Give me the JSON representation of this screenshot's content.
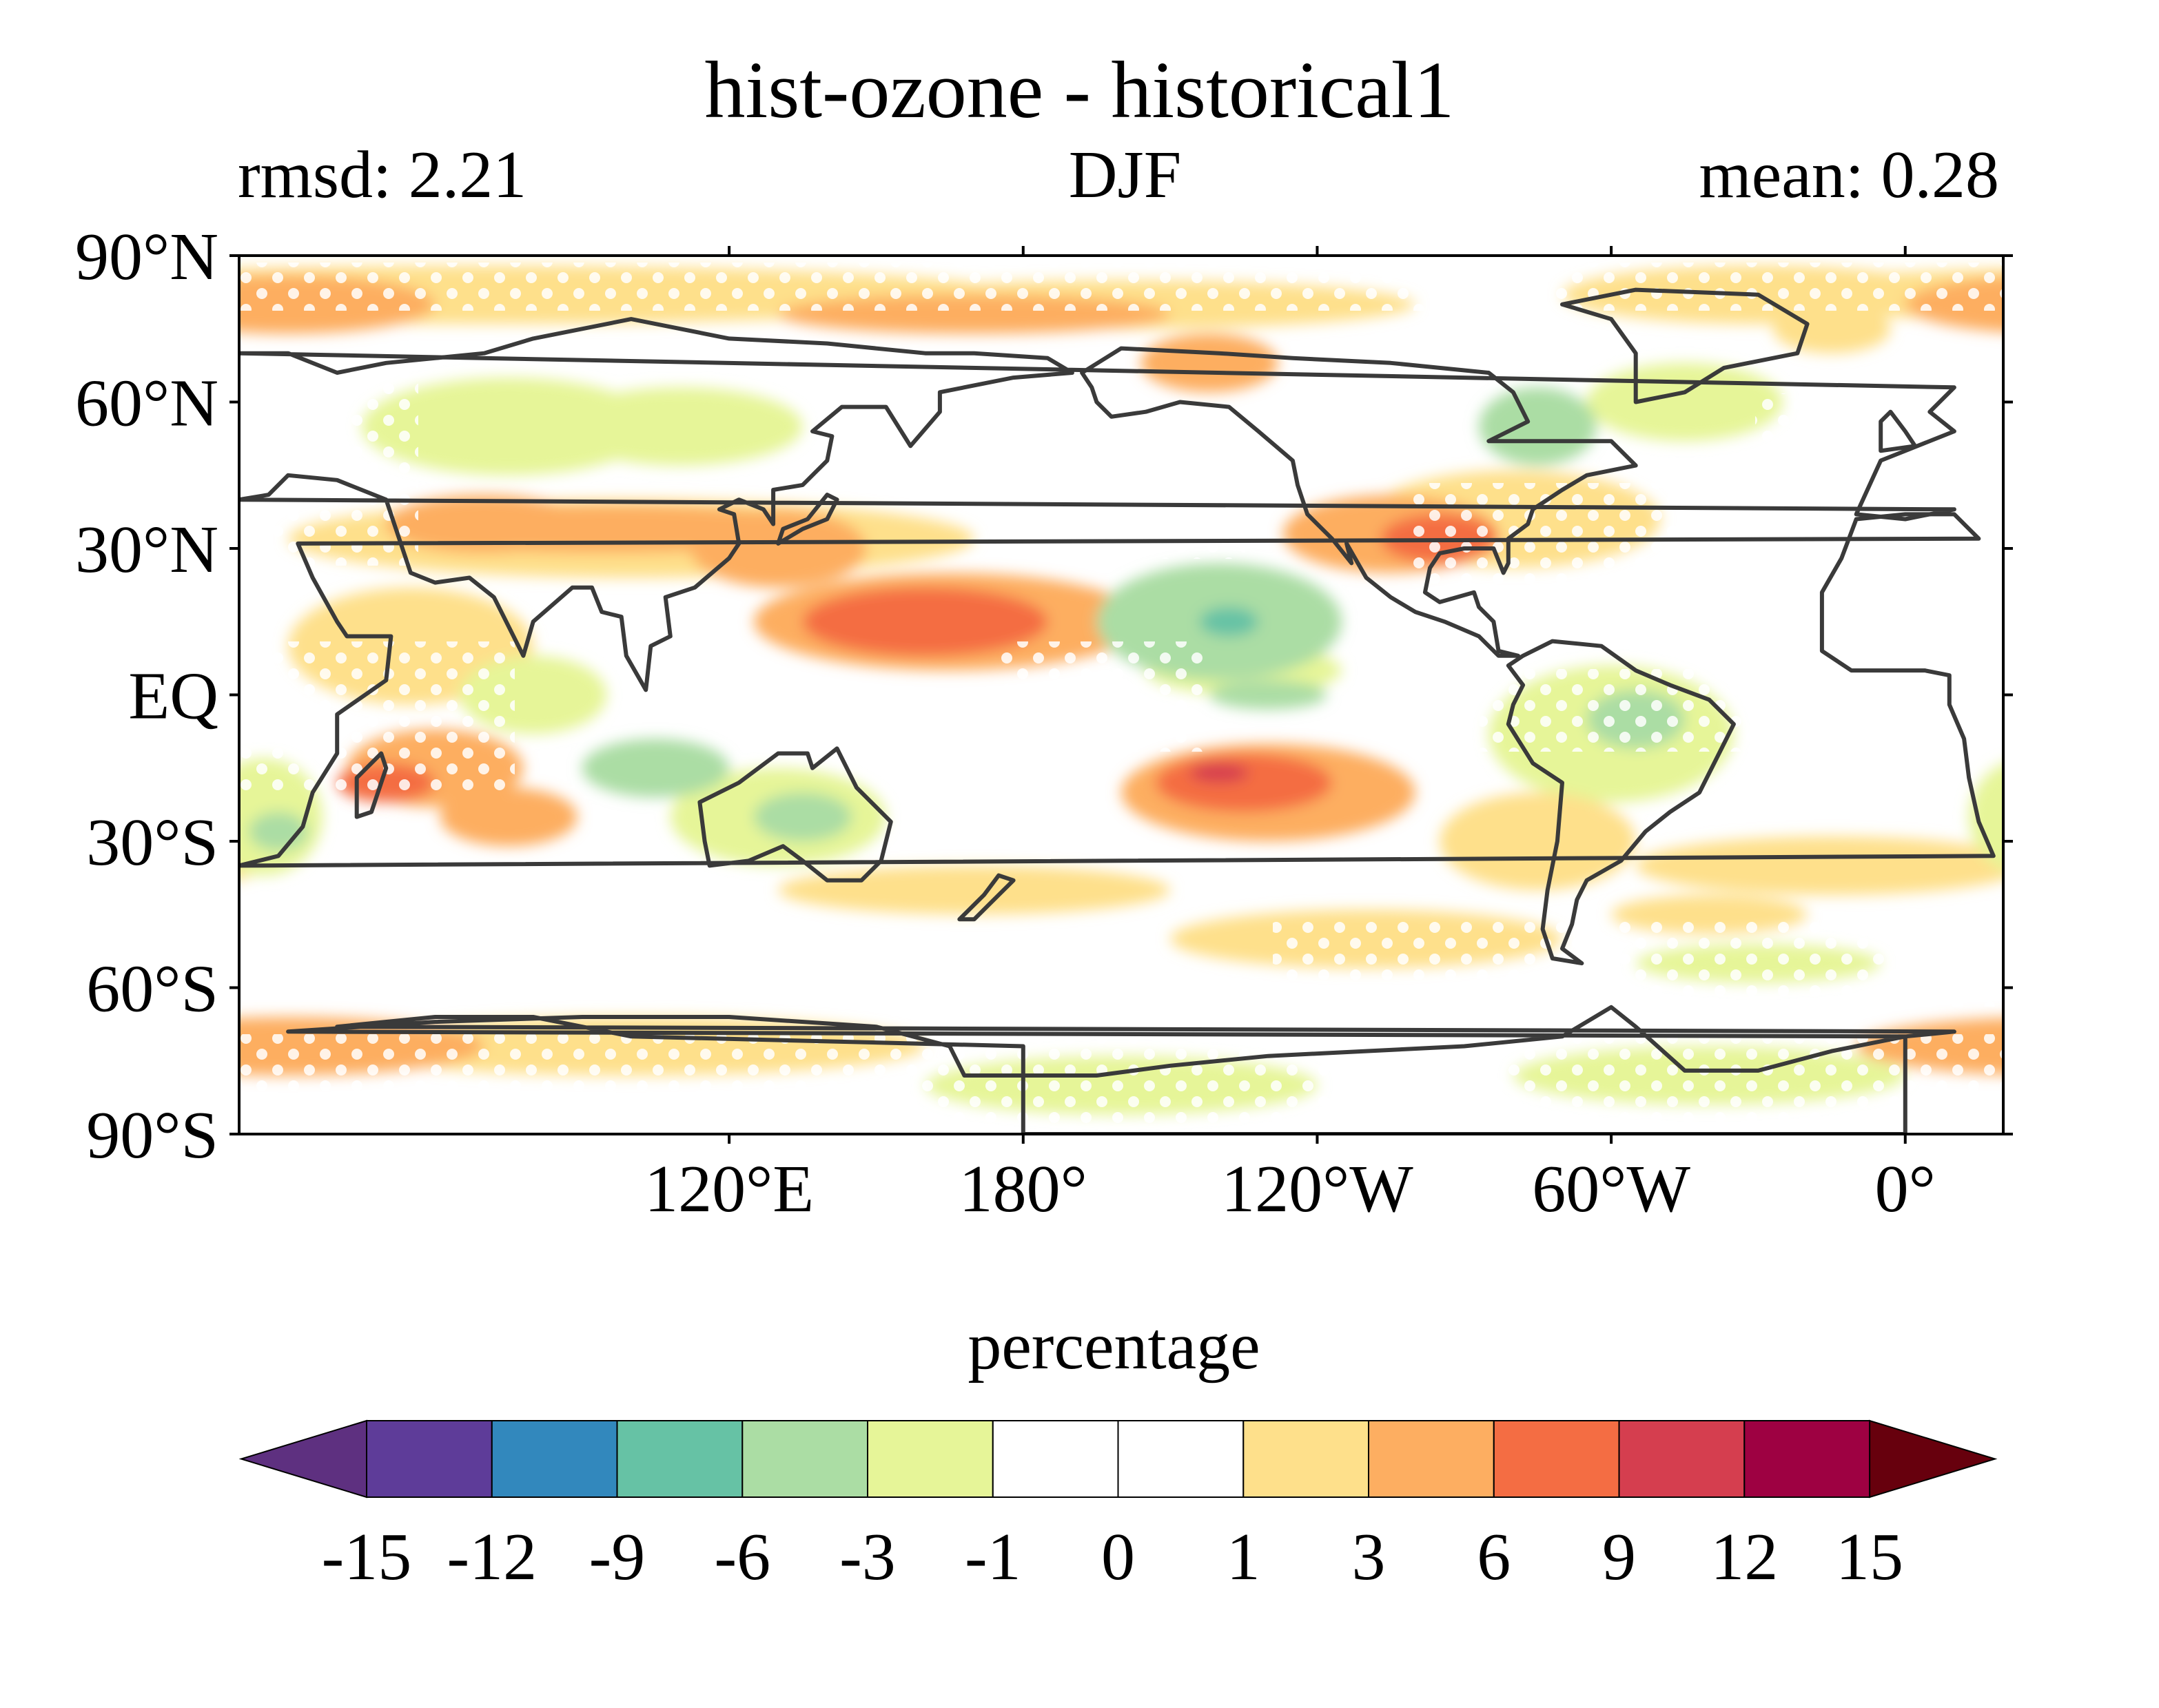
{
  "header": {
    "title": "hist-ozone - historical1",
    "left_stat": "rmsd: 2.21",
    "center": "DJF",
    "right_stat": "mean: 0.28"
  },
  "chart_data": {
    "type": "heatmap",
    "projection": "PlateCarree",
    "central_longitude": 200,
    "lat_ticks": [
      {
        "value": 90,
        "label": "90°N"
      },
      {
        "value": 60,
        "label": "60°N"
      },
      {
        "value": 30,
        "label": "30°N"
      },
      {
        "value": 0,
        "label": "EQ"
      },
      {
        "value": -30,
        "label": "30°S"
      },
      {
        "value": -60,
        "label": "60°S"
      },
      {
        "value": -90,
        "label": "90°S"
      }
    ],
    "lon_ticks": [
      {
        "value": 120,
        "label": "120°E"
      },
      {
        "value": 180,
        "label": "180°"
      },
      {
        "value": 240,
        "label": "120°W"
      },
      {
        "value": 300,
        "label": "60°W"
      },
      {
        "value": 360,
        "label": "0°"
      }
    ],
    "stippling": "white dots mark statistically significant regions",
    "features": [
      {
        "region": "subtropical north Pacific near 15°N, 170°E",
        "value_range": [
          6,
          9
        ]
      },
      {
        "region": "central Pacific near 15°N, 140°W",
        "value_range": [
          -12,
          -6
        ]
      },
      {
        "region": "southeast Pacific near 20°S, 135°W",
        "value_range": [
          6,
          12
        ]
      },
      {
        "region": "southern United States near 30°N, 100°W",
        "value_range": [
          3,
          9
        ]
      },
      {
        "region": "East Asia near 30°N, 130°E",
        "value_range": [
          3,
          6
        ]
      },
      {
        "region": "Indian Ocean near 20°S, 60°E",
        "value_range": [
          3,
          9
        ]
      },
      {
        "region": "Australia",
        "value_range": [
          -6,
          -1
        ]
      },
      {
        "region": "Hudson Bay region",
        "value_range": [
          -6,
          -1
        ]
      },
      {
        "region": "southern Africa",
        "value_range": [
          -9,
          -3
        ]
      }
    ]
  },
  "colorbar": {
    "label": "percentage",
    "extend": "both",
    "ticks": [
      "-15",
      "-12",
      "-9",
      "-6",
      "-3",
      "-1",
      "0",
      "1",
      "3",
      "6",
      "9",
      "12",
      "15"
    ],
    "colors": [
      "#5e3c99",
      "#3288bd",
      "#66c2a5",
      "#abdda4",
      "#e6f598",
      "#ffffff",
      "#ffffff",
      "#fee08b",
      "#fdae61",
      "#f46d43",
      "#d53e4f",
      "#9e0142"
    ],
    "under_color": "#5e3080",
    "over_color": "#67000d"
  },
  "colors": {
    "coastline": "#3a3a3a",
    "stipple": "#ffffff"
  }
}
